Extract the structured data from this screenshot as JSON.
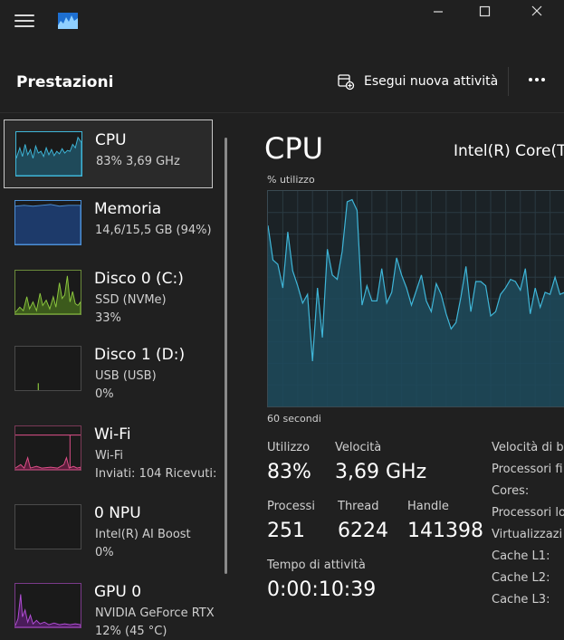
{
  "header": {
    "title": "Prestazioni",
    "run_new_task": "Esegui nuova attività"
  },
  "sidebar": {
    "items": [
      {
        "title": "CPU",
        "sub1": "83%  3,69 GHz",
        "sub2": "",
        "icon": "cpu-graph"
      },
      {
        "title": "Memoria",
        "sub1": "14,6/15,5 GB (94%)",
        "sub2": "",
        "icon": "memory-graph"
      },
      {
        "title": "Disco 0 (C:)",
        "sub1": "SSD (NVMe)",
        "sub2": "33%",
        "icon": "disk-graph"
      },
      {
        "title": "Disco 1 (D:)",
        "sub1": "USB (USB)",
        "sub2": "0%",
        "icon": "disk-graph"
      },
      {
        "title": "Wi-Fi",
        "sub1": "Wi-Fi",
        "sub2": "Inviati: 104 Ricevuti:",
        "icon": "network-graph"
      },
      {
        "title": "0 NPU",
        "sub1": "Intel(R) AI Boost",
        "sub2": "0%",
        "icon": "npu-graph"
      },
      {
        "title": "GPU 0",
        "sub1": "NVIDIA GeForce RTX",
        "sub2": "12%  (45 °C)",
        "icon": "gpu-graph"
      }
    ]
  },
  "main": {
    "title": "CPU",
    "model": "Intel(R) Core(T",
    "util_label": "% utilizzo",
    "time_label": "60 secondi",
    "stats": {
      "utilizzo_label": "Utilizzo",
      "utilizzo_value": "83%",
      "velocita_label": "Velocità",
      "velocita_value": "3,69 GHz",
      "processi_label": "Processi",
      "processi_value": "251",
      "thread_label": "Thread",
      "thread_value": "6224",
      "handle_label": "Handle",
      "handle_value": "141398",
      "uptime_label": "Tempo di attività",
      "uptime_value": "0:00:10:39"
    },
    "specs": [
      "Velocità di b",
      "Processori fi",
      "Cores:",
      "Processori lo",
      "Virtualizzazi",
      "Cache L1:",
      "Cache L2:",
      "Cache L3:"
    ]
  },
  "colors": {
    "cpu_line": "#3fb6d8",
    "memory": "#4c8fd6",
    "disk_c": "#8cc63f",
    "network": "#e0508a",
    "gpu": "#b24fd6"
  },
  "chart_data": {
    "type": "area",
    "ylim": [
      0,
      100
    ],
    "x": [
      0,
      1,
      2,
      3,
      4,
      5,
      6,
      7,
      8,
      9,
      10,
      11,
      12,
      13,
      14,
      15,
      16,
      17,
      18,
      19,
      20,
      21,
      22,
      23,
      24,
      25,
      26,
      27,
      28,
      29,
      30,
      31,
      32,
      33,
      34,
      35,
      36,
      37,
      38,
      39,
      40,
      41,
      42,
      43,
      44,
      45,
      46,
      47,
      48,
      49,
      50,
      51,
      52,
      53,
      54,
      55,
      56,
      57,
      58,
      59,
      60
    ],
    "values": [
      84,
      68,
      66,
      55,
      81,
      63,
      56,
      48,
      52,
      21,
      55,
      32,
      73,
      61,
      59,
      72,
      95,
      96,
      91,
      47,
      56,
      49,
      49,
      64,
      48,
      53,
      69,
      61,
      55,
      47,
      54,
      61,
      49,
      44,
      57,
      52,
      43,
      36,
      39,
      51,
      65,
      44,
      58,
      58,
      56,
      42,
      44,
      52,
      55,
      59,
      58,
      54,
      64,
      43,
      55,
      46,
      53,
      52,
      60,
      52,
      53
    ]
  }
}
